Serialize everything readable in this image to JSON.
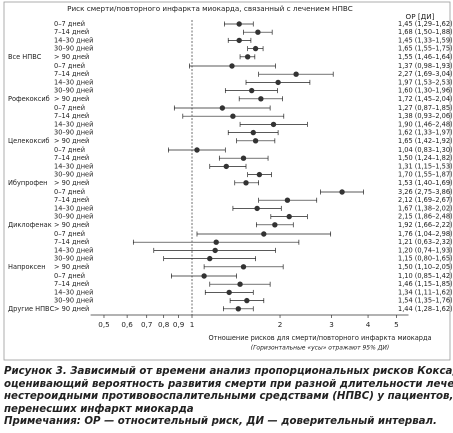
{
  "chart_data": {
    "type": "forest",
    "title": "Риск смерти/повторного инфаркта миокарда, связанный с лечением НПВС",
    "column_header": "ОР [ДИ]",
    "xlabel": "Отношение рисков для смерти/повторного инфаркта миокарда",
    "note": "(Горизонтальные «усы» отражают 95% ДИ)",
    "xscale": "log",
    "xlim": [
      0.45,
      5.5
    ],
    "xticks": [
      {
        "value": 0.5,
        "label": "0,5"
      },
      {
        "value": 0.6,
        "label": "0,6"
      },
      {
        "value": 0.7,
        "label": "0,7"
      },
      {
        "value": 0.8,
        "label": "0,8"
      },
      {
        "value": 0.9,
        "label": "0,9"
      },
      1,
      2,
      3,
      4,
      5
    ],
    "reference_line": 1,
    "marker_color": "#333333",
    "groups": [
      {
        "name": "Все НПВС",
        "rows": [
          {
            "label": "0–7 дней",
            "value": 1.45,
            "low": 1.29,
            "high": 1.62,
            "value_label": "1,45 (1,29–1,62)"
          },
          {
            "label": "7–14 дней",
            "value": 1.68,
            "low": 1.5,
            "high": 1.88,
            "value_label": "1,68 (1,50–1,88)"
          },
          {
            "label": "14–30 дней",
            "value": 1.45,
            "low": 1.33,
            "high": 1.59,
            "value_label": "1,45 (1,33–1,59)"
          },
          {
            "label": "30–90 дней",
            "value": 1.65,
            "low": 1.55,
            "high": 1.75,
            "value_label": "1,65 (1,55–1,75)"
          },
          {
            "label": "> 90 дней",
            "value": 1.55,
            "low": 1.46,
            "high": 1.64,
            "value_label": "1,55 (1,46–1,64)"
          }
        ]
      },
      {
        "name": "Рофекоксиб",
        "rows": [
          {
            "label": "0–7 дней",
            "value": 1.37,
            "low": 0.98,
            "high": 1.93,
            "value_label": "1,37 (0,98–1,93)"
          },
          {
            "label": "7–14 дней",
            "value": 2.27,
            "low": 1.69,
            "high": 3.04,
            "value_label": "2,27 (1,69–3,04)"
          },
          {
            "label": "14–30 дней",
            "value": 1.97,
            "low": 1.53,
            "high": 2.53,
            "value_label": "1,97 (1,53–2,53)"
          },
          {
            "label": "30–90 дней",
            "value": 1.6,
            "low": 1.3,
            "high": 1.96,
            "value_label": "1,60 (1,30–1,96)"
          },
          {
            "label": "> 90 дней",
            "value": 1.72,
            "low": 1.45,
            "high": 2.04,
            "value_label": "1,72 (1,45–2,04)"
          }
        ]
      },
      {
        "name": "Целекоксиб",
        "rows": [
          {
            "label": "0–7 дней",
            "value": 1.27,
            "low": 0.87,
            "high": 1.85,
            "value_label": "1,27 (0,87–1,85)"
          },
          {
            "label": "7–14 дней",
            "value": 1.38,
            "low": 0.93,
            "high": 2.06,
            "value_label": "1,38 (0,93–2,06)"
          },
          {
            "label": "14–30 дней",
            "value": 1.9,
            "low": 1.46,
            "high": 2.48,
            "value_label": "1,90 (1,46–2,48)"
          },
          {
            "label": "30–90 дней",
            "value": 1.62,
            "low": 1.33,
            "high": 1.97,
            "value_label": "1,62 (1,33–1,97)"
          },
          {
            "label": "> 90 дней",
            "value": 1.65,
            "low": 1.42,
            "high": 1.92,
            "value_label": "1,65 (1,42–1,92)"
          }
        ]
      },
      {
        "name": "Ибупрофен",
        "rows": [
          {
            "label": "0–7 дней",
            "value": 1.04,
            "low": 0.83,
            "high": 1.3,
            "value_label": "1,04 (0,83–1,30)"
          },
          {
            "label": "7–14 дней",
            "value": 1.5,
            "low": 1.24,
            "high": 1.82,
            "value_label": "1,50 (1,24–1,82)"
          },
          {
            "label": "14–30 дней",
            "value": 1.31,
            "low": 1.15,
            "high": 1.53,
            "value_label": "1,31 (1,15–1,53)"
          },
          {
            "label": "30–90 дней",
            "value": 1.7,
            "low": 1.55,
            "high": 1.87,
            "value_label": "1,70 (1,55–1,87)"
          },
          {
            "label": "> 90 дней",
            "value": 1.53,
            "low": 1.4,
            "high": 1.69,
            "value_label": "1,53 (1,40–1,69)"
          }
        ]
      },
      {
        "name": "Диклофенак",
        "rows": [
          {
            "label": "0–7 дней",
            "value": 3.26,
            "low": 2.75,
            "high": 3.86,
            "value_label": "3,26 (2,75–3,86)"
          },
          {
            "label": "7–14 дней",
            "value": 2.12,
            "low": 1.69,
            "high": 2.67,
            "value_label": "2,12 (1,69–2,67)"
          },
          {
            "label": "14–30 дней",
            "value": 1.67,
            "low": 1.38,
            "high": 2.02,
            "value_label": "1,67 (1,38–2,02)"
          },
          {
            "label": "30–90 дней",
            "value": 2.15,
            "low": 1.86,
            "high": 2.48,
            "value_label": "2,15 (1,86–2,48)"
          },
          {
            "label": "> 90 дней",
            "value": 1.92,
            "low": 1.66,
            "high": 2.22,
            "value_label": "1,92 (1,66–2,22)"
          }
        ]
      },
      {
        "name": "Напроксен",
        "rows": [
          {
            "label": "0–7 дней",
            "value": 1.76,
            "low": 1.04,
            "high": 2.98,
            "value_label": "1,76 (1,04–2,98)"
          },
          {
            "label": "7–14 дней",
            "value": 1.21,
            "low": 0.63,
            "high": 2.32,
            "value_label": "1,21 (0,63–2,32)"
          },
          {
            "label": "14–30 дней",
            "value": 1.2,
            "low": 0.74,
            "high": 1.93,
            "value_label": "1,20 (0,74–1,93)"
          },
          {
            "label": "30–90 дней",
            "value": 1.15,
            "low": 0.8,
            "high": 1.65,
            "value_label": "1,15 (0,80–1,65)"
          },
          {
            "label": "> 90 дней",
            "value": 1.5,
            "low": 1.1,
            "high": 2.05,
            "value_label": "1,50 (1,10–2,05)"
          }
        ]
      },
      {
        "name": "Другие НПВС",
        "rows": [
          {
            "label": "0–7 дней",
            "value": 1.1,
            "low": 0.85,
            "high": 1.42,
            "value_label": "1,10 (0,85–1,42)"
          },
          {
            "label": "7–14 дней",
            "value": 1.46,
            "low": 1.15,
            "high": 1.85,
            "value_label": "1,46 (1,15–1,85)"
          },
          {
            "label": "14–30 дней",
            "value": 1.34,
            "low": 1.11,
            "high": 1.62,
            "value_label": "1,34 (1,11–1,62)"
          },
          {
            "label": "30–90 дней",
            "value": 1.54,
            "low": 1.35,
            "high": 1.76,
            "value_label": "1,54 (1,35–1,76)"
          },
          {
            "label": "> 90 дней",
            "value": 1.44,
            "low": 1.28,
            "high": 1.62,
            "value_label": "1,44 (1,28–1,62)"
          }
        ]
      }
    ]
  },
  "caption": {
    "lines": [
      "Рисунок 3. Зависимый от времени анализ пропорциональных рисков Кокса,",
      "оценивающий вероятность развития смерти при разной длительности лечения",
      "нестероидными противовоспалительными средствами (НПВС) у пациентов,",
      "перенесших инфаркт миокарда"
    ],
    "notes": "Примечания: ОР — относительный риск, ДИ — доверительный интервал."
  }
}
